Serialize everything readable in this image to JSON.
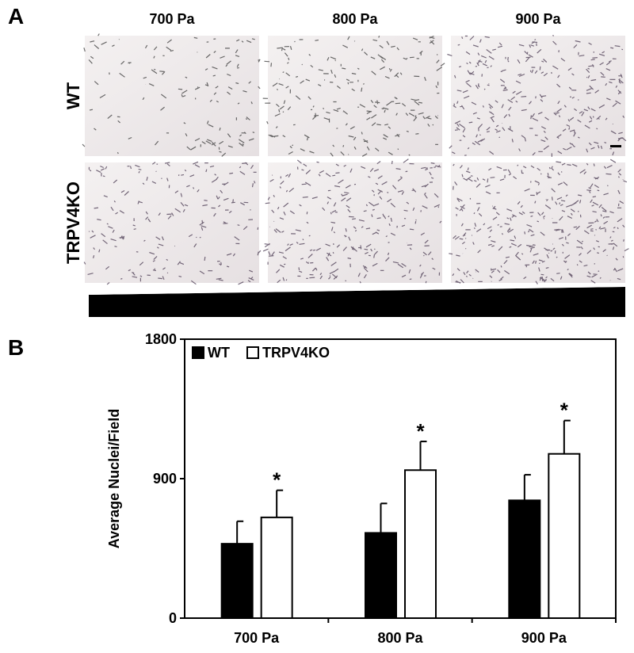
{
  "panel_a": {
    "label": "A",
    "columns": [
      "700 Pa",
      "800 Pa",
      "900 Pa"
    ],
    "rows": [
      "WT",
      "TRPV4KO"
    ]
  },
  "panel_b_label": "B",
  "chart_data": {
    "type": "bar",
    "ylabel": "Average Nuclei/Field",
    "categories": [
      "700 Pa",
      "800 Pa",
      "900 Pa"
    ],
    "series": [
      {
        "name": "WT",
        "color": "#000000",
        "values": [
          480,
          550,
          760
        ],
        "errors": [
          145,
          190,
          165
        ]
      },
      {
        "name": "TRPV4KO",
        "color": "#ffffff",
        "values": [
          650,
          955,
          1060
        ],
        "errors": [
          175,
          185,
          215
        ],
        "annotations": [
          "*",
          "*",
          "*"
        ]
      }
    ],
    "ylim": [
      0,
      1800
    ],
    "yticks": [
      0,
      900,
      1800
    ],
    "legend": "top-left"
  }
}
